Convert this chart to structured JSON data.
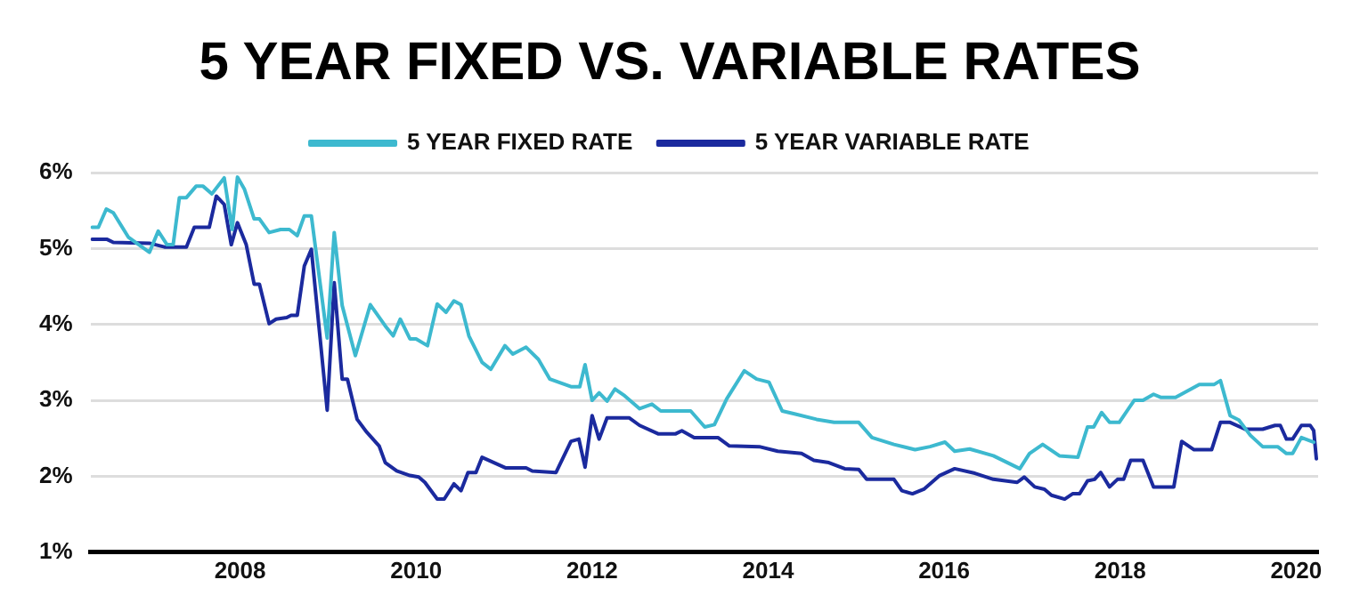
{
  "chart_data": {
    "type": "line",
    "title": "5 YEAR FIXED VS. VARIABLE RATES",
    "series": [
      {
        "name": "5 YEAR FIXED RATE",
        "color": "#3db9cf",
        "x": [
          2006.32,
          2006.39,
          2006.48,
          2006.56,
          2006.73,
          2006.97,
          2007.07,
          2007.17,
          2007.24,
          2007.31,
          2007.39,
          2007.5,
          2007.58,
          2007.68,
          2007.82,
          2007.91,
          2007.97,
          2008.05,
          2008.16,
          2008.22,
          2008.33,
          2008.46,
          2008.56,
          2008.65,
          2008.73,
          2008.81,
          2008.99,
          2009.07,
          2009.16,
          2009.31,
          2009.48,
          2009.65,
          2009.74,
          2009.82,
          2009.93,
          2010.0,
          2010.13,
          2010.24,
          2010.34,
          2010.43,
          2010.51,
          2010.6,
          2010.75,
          2010.85,
          2011.01,
          2011.1,
          2011.25,
          2011.39,
          2011.52,
          2011.76,
          2011.86,
          2011.92,
          2012.0,
          2012.08,
          2012.17,
          2012.26,
          2012.37,
          2012.54,
          2012.68,
          2012.78,
          2013.12,
          2013.28,
          2013.39,
          2013.53,
          2013.73,
          2013.87,
          2014.01,
          2014.16,
          2014.31,
          2014.55,
          2014.75,
          2015.03,
          2015.18,
          2015.43,
          2015.67,
          2015.84,
          2016.01,
          2016.12,
          2016.29,
          2016.56,
          2016.86,
          2016.97,
          2017.12,
          2017.31,
          2017.52,
          2017.63,
          2017.7,
          2017.79,
          2017.88,
          2017.99,
          2018.16,
          2018.26,
          2018.38,
          2018.46,
          2018.63,
          2018.9,
          2019.07,
          2019.14,
          2019.25,
          2019.35,
          2019.48,
          2019.62,
          2019.79,
          2019.89,
          2019.96,
          2020.06,
          2020.2
        ],
        "values": [
          5.28,
          5.28,
          5.52,
          5.47,
          5.15,
          4.95,
          5.23,
          5.05,
          5.05,
          5.67,
          5.67,
          5.82,
          5.82,
          5.72,
          5.93,
          5.25,
          5.94,
          5.78,
          5.39,
          5.39,
          5.21,
          5.25,
          5.25,
          5.17,
          5.43,
          5.43,
          3.82,
          5.21,
          4.25,
          3.59,
          4.26,
          3.98,
          3.85,
          4.07,
          3.81,
          3.81,
          3.72,
          4.27,
          4.16,
          4.31,
          4.26,
          3.85,
          3.5,
          3.41,
          3.72,
          3.61,
          3.7,
          3.54,
          3.28,
          3.18,
          3.18,
          3.47,
          3.0,
          3.1,
          2.99,
          3.15,
          3.06,
          2.89,
          2.95,
          2.86,
          2.86,
          2.65,
          2.68,
          3.02,
          3.39,
          3.28,
          3.24,
          2.86,
          2.82,
          2.75,
          2.71,
          2.71,
          2.51,
          2.42,
          2.35,
          2.39,
          2.45,
          2.33,
          2.36,
          2.27,
          2.1,
          2.3,
          2.42,
          2.27,
          2.25,
          2.65,
          2.65,
          2.84,
          2.71,
          2.71,
          3.0,
          3.0,
          3.08,
          3.04,
          3.04,
          3.21,
          3.21,
          3.26,
          2.8,
          2.74,
          2.54,
          2.39,
          2.39,
          2.3,
          2.3,
          2.51,
          2.45
        ]
      },
      {
        "name": "5 YEAR VARIABLE RATE",
        "color": "#1b2a9e",
        "x": [
          2006.32,
          2006.49,
          2006.56,
          2006.97,
          2007.14,
          2007.39,
          2007.48,
          2007.65,
          2007.73,
          2007.82,
          2007.9,
          2007.97,
          2008.07,
          2008.16,
          2008.22,
          2008.33,
          2008.41,
          2008.53,
          2008.58,
          2008.65,
          2008.73,
          2008.81,
          2008.99,
          2009.07,
          2009.16,
          2009.22,
          2009.33,
          2009.44,
          2009.58,
          2009.65,
          2009.78,
          2009.93,
          2010.03,
          2010.1,
          2010.24,
          2010.32,
          2010.43,
          2010.51,
          2010.59,
          2010.68,
          2010.75,
          2011.02,
          2011.25,
          2011.32,
          2011.59,
          2011.76,
          2011.85,
          2011.92,
          2012.0,
          2012.08,
          2012.17,
          2012.42,
          2012.54,
          2012.75,
          2012.95,
          2013.02,
          2013.16,
          2013.43,
          2013.56,
          2013.9,
          2014.11,
          2014.38,
          2014.52,
          2014.69,
          2014.87,
          2015.03,
          2015.12,
          2015.43,
          2015.52,
          2015.64,
          2015.77,
          2015.95,
          2016.12,
          2016.35,
          2016.56,
          2016.83,
          2016.91,
          2017.03,
          2017.14,
          2017.22,
          2017.37,
          2017.46,
          2017.54,
          2017.63,
          2017.71,
          2017.78,
          2017.88,
          2017.97,
          2018.04,
          2018.12,
          2018.26,
          2018.38,
          2018.61,
          2018.7,
          2018.84,
          2019.04,
          2019.14,
          2019.25,
          2019.42,
          2019.62,
          2019.76,
          2019.82,
          2019.89,
          2019.96,
          2020.06,
          2020.16,
          2020.2,
          2020.23
        ],
        "values": [
          5.12,
          5.12,
          5.08,
          5.07,
          5.02,
          5.02,
          5.28,
          5.28,
          5.69,
          5.58,
          5.05,
          5.34,
          5.05,
          4.53,
          4.53,
          4.01,
          4.07,
          4.09,
          4.12,
          4.12,
          4.77,
          4.99,
          2.87,
          4.55,
          3.28,
          3.28,
          2.75,
          2.58,
          2.4,
          2.18,
          2.07,
          2.01,
          1.99,
          1.92,
          1.7,
          1.7,
          1.9,
          1.81,
          2.05,
          2.05,
          2.25,
          2.11,
          2.11,
          2.07,
          2.05,
          2.46,
          2.49,
          2.12,
          2.8,
          2.49,
          2.77,
          2.77,
          2.67,
          2.56,
          2.56,
          2.6,
          2.51,
          2.51,
          2.4,
          2.39,
          2.33,
          2.3,
          2.21,
          2.18,
          2.1,
          2.09,
          1.96,
          1.96,
          1.81,
          1.77,
          1.83,
          2.01,
          2.1,
          2.04,
          1.96,
          1.92,
          1.99,
          1.86,
          1.83,
          1.75,
          1.7,
          1.77,
          1.77,
          1.94,
          1.96,
          2.05,
          1.86,
          1.96,
          1.96,
          2.21,
          2.21,
          1.86,
          1.86,
          2.46,
          2.35,
          2.35,
          2.71,
          2.71,
          2.62,
          2.62,
          2.67,
          2.67,
          2.49,
          2.49,
          2.67,
          2.67,
          2.6,
          2.23
        ]
      }
    ],
    "xlim": [
      2006.3,
      2020.25
    ],
    "xticks": [
      2008,
      2010,
      2012,
      2014,
      2016,
      2018,
      2020
    ],
    "ylim": [
      1,
      6
    ],
    "yticks": [
      {
        "value": 1,
        "label": "1%"
      },
      {
        "value": 2,
        "label": "2%"
      },
      {
        "value": 3,
        "label": "3%"
      },
      {
        "value": 4,
        "label": "4%"
      },
      {
        "value": 5,
        "label": "5%"
      },
      {
        "value": 6,
        "label": "6%"
      }
    ],
    "grid": "y",
    "legend": "top",
    "marker": "none",
    "line_style": "solid"
  }
}
